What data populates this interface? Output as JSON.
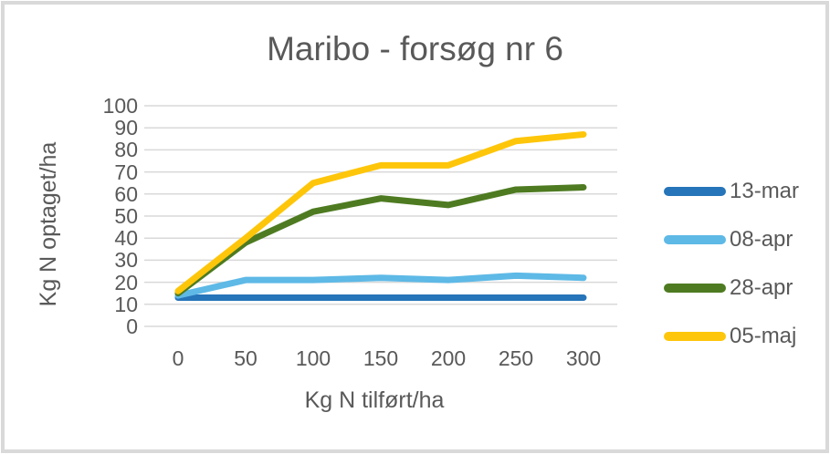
{
  "frame": {
    "border_color": "#D9D9D9",
    "background": "#FFFFFF",
    "text_color": "#595959"
  },
  "chart_data": {
    "type": "line",
    "title": "Maribo - forsøg nr 6",
    "xlabel": "Kg N tilført/ha",
    "ylabel": "Kg N optaget/ha",
    "categories": [
      0,
      50,
      100,
      150,
      200,
      250,
      300
    ],
    "series": [
      {
        "name": "13-mar",
        "color": "#2674B9",
        "values": [
          13,
          13,
          13,
          13,
          13,
          13,
          13
        ]
      },
      {
        "name": "08-apr",
        "color": "#5EB9E6",
        "values": [
          14,
          21,
          21,
          22,
          21,
          23,
          22
        ]
      },
      {
        "name": "28-apr",
        "color": "#4E7B21",
        "values": [
          15,
          38,
          52,
          58,
          55,
          62,
          63
        ]
      },
      {
        "name": "05-maj",
        "color": "#FEC60A",
        "values": [
          16,
          40,
          65,
          73,
          73,
          84,
          87
        ]
      }
    ],
    "ylim": [
      0,
      100
    ],
    "ytick_step": 10,
    "grid": "horizontal",
    "gridline_color": "#D9D9D9",
    "legend_position": "right"
  }
}
